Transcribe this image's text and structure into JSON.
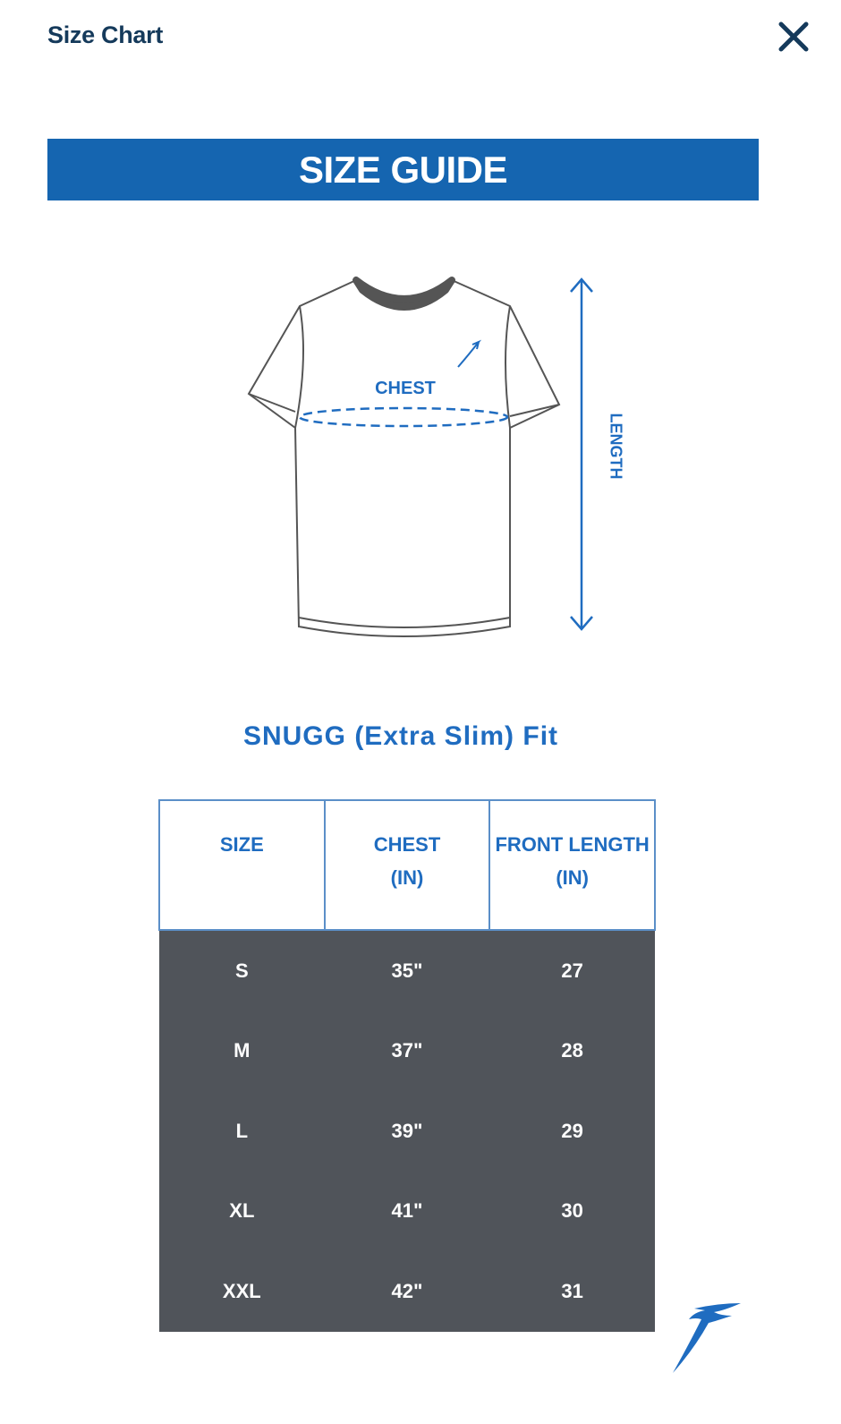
{
  "header": {
    "title": "Size Chart",
    "close_icon": "close-icon"
  },
  "banner": {
    "text": "SIZE GUIDE",
    "color": "#1565b0"
  },
  "diagram": {
    "chest_label": "CHEST",
    "length_label": "LENGTH"
  },
  "fit": {
    "title": "SNUGG (Extra Slim) Fit"
  },
  "table": {
    "headers": [
      {
        "line1": "SIZE",
        "line2": ""
      },
      {
        "line1": "CHEST",
        "line2": "(IN)"
      },
      {
        "line1": "FRONT LENGTH",
        "line2": "(IN)"
      }
    ],
    "rows": [
      [
        "S",
        "35\"",
        "27"
      ],
      [
        "M",
        "37\"",
        "28"
      ],
      [
        "L",
        "39\"",
        "29"
      ],
      [
        "XL",
        "41\"",
        "30"
      ],
      [
        "XXL",
        "42\"",
        "31"
      ]
    ],
    "body_color": "#50545a"
  },
  "accent": "#1f6cc0"
}
